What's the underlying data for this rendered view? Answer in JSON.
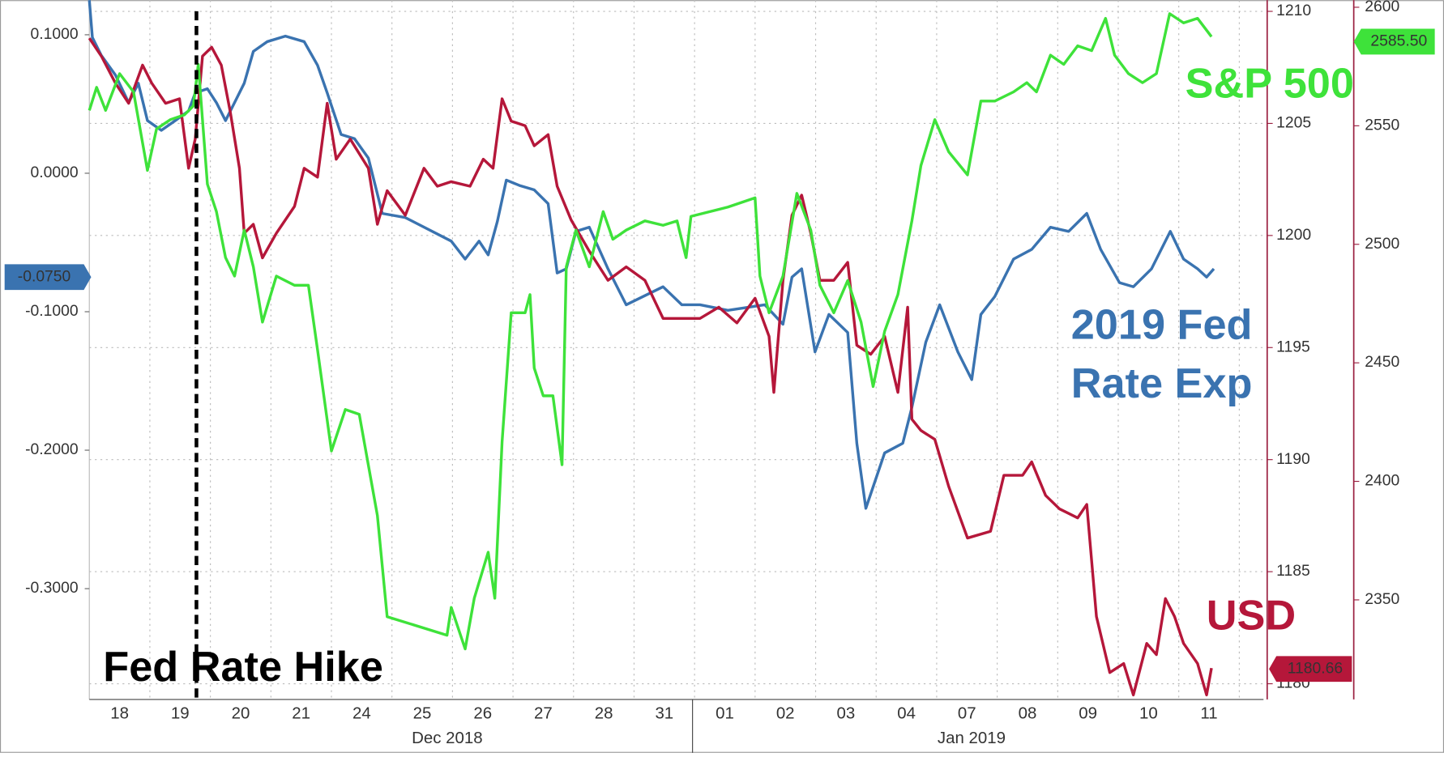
{
  "chart_data": {
    "type": "line",
    "categories": [
      "18",
      "19",
      "20",
      "21",
      "24",
      "25",
      "26",
      "27",
      "28",
      "31",
      "01",
      "02",
      "03",
      "04",
      "07",
      "08",
      "09",
      "10",
      "11"
    ],
    "month_labels": [
      "Dec 2018",
      "Jan 2019"
    ],
    "xlim": [
      0,
      19.4
    ],
    "ylim": [
      -0.38,
      0.125
    ],
    "yticks": [
      {
        "value": 0.1,
        "label": "0.1000"
      },
      {
        "value": 0,
        "label": "0.0000"
      },
      {
        "value": -0.1,
        "label": "-0.1000"
      },
      {
        "value": -0.2,
        "label": "-0.2000"
      },
      {
        "value": -0.3,
        "label": "-0.3000"
      }
    ],
    "y2lim": [
      1179.3,
      1210.5
    ],
    "y2ticks": [
      1180,
      1185,
      1190,
      1195,
      1200,
      1205,
      1210
    ],
    "y3lim": [
      2308,
      2603
    ],
    "y3ticks": [
      2350,
      2400,
      2450,
      2500,
      2550,
      2600
    ],
    "grid": true,
    "annotation": {
      "text": "Fed Rate Hike",
      "x": 1.77
    },
    "series": [
      {
        "name": "2019 Fed Rate Exp",
        "color": "#3a73b0",
        "axis": "y",
        "last_value": -0.075,
        "last_value_label": "-0.0750",
        "x": [
          0,
          0.05,
          0.2,
          0.43,
          0.65,
          0.81,
          0.96,
          1.19,
          1.42,
          1.64,
          1.75,
          1.95,
          2.1,
          2.25,
          2.4,
          2.56,
          2.71,
          2.94,
          3.24,
          3.55,
          3.77,
          3.93,
          4.16,
          4.38,
          4.61,
          4.84,
          5.22,
          5.98,
          6.21,
          6.44,
          6.59,
          6.74,
          6.89,
          7.12,
          7.35,
          7.58,
          7.73,
          7.88,
          8.04,
          8.26,
          8.57,
          8.87,
          9.48,
          9.79,
          10.09,
          10.55,
          11.16,
          11.46,
          11.61,
          11.77,
          11.99,
          12.22,
          12.53,
          12.68,
          12.83,
          13.14,
          13.44,
          13.59,
          13.82,
          14.05,
          14.35,
          14.58,
          14.73,
          14.96,
          15.27,
          15.57,
          15.88,
          16.18,
          16.48,
          16.71,
          17.02,
          17.25,
          17.55,
          17.86,
          18.08,
          18.31,
          18.46,
          18.58
        ],
        "values": [
          0.125,
          0.098,
          0.085,
          0.071,
          0.051,
          0.065,
          0.038,
          0.031,
          0.038,
          0.045,
          0.058,
          0.061,
          0.051,
          0.038,
          0.051,
          0.065,
          0.088,
          0.095,
          0.099,
          0.095,
          0.078,
          0.058,
          0.028,
          0.025,
          0.011,
          -0.029,
          -0.032,
          -0.049,
          -0.062,
          -0.049,
          -0.059,
          -0.035,
          -0.005,
          -0.009,
          -0.012,
          -0.022,
          -0.072,
          -0.069,
          -0.042,
          -0.039,
          -0.069,
          -0.095,
          -0.082,
          -0.095,
          -0.095,
          -0.099,
          -0.095,
          -0.109,
          -0.075,
          -0.069,
          -0.129,
          -0.102,
          -0.115,
          -0.195,
          -0.242,
          -0.202,
          -0.195,
          -0.169,
          -0.122,
          -0.095,
          -0.129,
          -0.149,
          -0.102,
          -0.089,
          -0.062,
          -0.055,
          -0.039,
          -0.042,
          -0.029,
          -0.055,
          -0.079,
          -0.082,
          -0.069,
          -0.042,
          -0.062,
          -0.069,
          -0.075,
          -0.069
        ]
      },
      {
        "name": "USD",
        "color": "#b5173a",
        "axis": "y2",
        "last_value": 1180.66,
        "last_value_label": "1180.66",
        "x": [
          0,
          0.2,
          0.43,
          0.65,
          0.88,
          1.03,
          1.26,
          1.49,
          1.64,
          1.75,
          1.87,
          2.02,
          2.18,
          2.33,
          2.48,
          2.56,
          2.71,
          2.86,
          3.09,
          3.39,
          3.55,
          3.77,
          3.93,
          4.08,
          4.31,
          4.61,
          4.76,
          4.92,
          5.22,
          5.53,
          5.75,
          5.98,
          6.29,
          6.51,
          6.67,
          6.82,
          6.97,
          7.2,
          7.35,
          7.58,
          7.73,
          7.96,
          8.26,
          8.57,
          8.87,
          9.18,
          9.48,
          9.79,
          10.09,
          10.4,
          10.7,
          11.0,
          11.23,
          11.31,
          11.46,
          11.61,
          11.77,
          11.92,
          12.07,
          12.3,
          12.53,
          12.68,
          12.91,
          13.14,
          13.36,
          13.52,
          13.59,
          13.74,
          13.97,
          14.2,
          14.51,
          14.89,
          15.11,
          15.42,
          15.57,
          15.8,
          16.03,
          16.33,
          16.48,
          16.64,
          16.86,
          17.09,
          17.25,
          17.47,
          17.63,
          17.78,
          17.93,
          18.08,
          18.31,
          18.46,
          18.54
        ],
        "values": [
          1208.8,
          1208.0,
          1206.8,
          1205.9,
          1207.6,
          1206.8,
          1205.9,
          1206.1,
          1203.0,
          1204.3,
          1208.0,
          1208.4,
          1207.6,
          1205.5,
          1203.0,
          1200.1,
          1200.5,
          1199.0,
          1200.1,
          1201.3,
          1203.0,
          1202.6,
          1205.9,
          1203.4,
          1204.3,
          1203.0,
          1200.5,
          1202.0,
          1200.9,
          1203.0,
          1202.2,
          1202.4,
          1202.2,
          1203.4,
          1203.0,
          1206.1,
          1205.1,
          1204.9,
          1204.0,
          1204.5,
          1202.2,
          1200.7,
          1199.3,
          1198.0,
          1198.6,
          1198.0,
          1196.3,
          1196.3,
          1196.3,
          1196.8,
          1196.1,
          1197.2,
          1195.5,
          1193.0,
          1198.0,
          1200.9,
          1201.8,
          1200.1,
          1198.0,
          1198.0,
          1198.8,
          1195.1,
          1194.7,
          1195.5,
          1193.0,
          1196.8,
          1191.8,
          1191.3,
          1190.9,
          1188.8,
          1186.5,
          1186.8,
          1189.3,
          1189.3,
          1189.9,
          1188.4,
          1187.8,
          1187.4,
          1188.0,
          1183.0,
          1180.5,
          1180.9,
          1179.5,
          1181.8,
          1181.3,
          1183.8,
          1183.0,
          1181.8,
          1180.9,
          1179.5,
          1180.7
        ]
      },
      {
        "name": "S&P 500",
        "color": "#3ee23a",
        "axis": "y3",
        "last_value": 2585.5,
        "last_value_label": "2585.50",
        "x": [
          0,
          0.12,
          0.27,
          0.5,
          0.73,
          0.96,
          1.11,
          1.34,
          1.57,
          1.72,
          1.8,
          1.95,
          2.1,
          2.25,
          2.4,
          2.56,
          2.71,
          2.86,
          3.09,
          3.39,
          3.62,
          3.77,
          4.0,
          4.23,
          4.46,
          4.76,
          4.92,
          5.91,
          5.98,
          6.21,
          6.36,
          6.59,
          6.7,
          6.82,
          6.97,
          7.2,
          7.28,
          7.35,
          7.5,
          7.66,
          7.81,
          7.88,
          8.04,
          8.26,
          8.49,
          8.65,
          8.87,
          9.18,
          9.48,
          9.71,
          9.86,
          9.94,
          10.55,
          11.0,
          11.08,
          11.23,
          11.46,
          11.69,
          11.92,
          12.07,
          12.3,
          12.53,
          12.75,
          12.95,
          13.14,
          13.36,
          13.59,
          13.74,
          13.97,
          14.2,
          14.51,
          14.73,
          14.96,
          15.27,
          15.49,
          15.65,
          15.88,
          16.1,
          16.33,
          16.56,
          16.79,
          16.94,
          17.17,
          17.4,
          17.63,
          17.85,
          18.08,
          18.31,
          18.54
        ],
        "values": [
          2556.5,
          2566.2,
          2556.5,
          2572.0,
          2564.3,
          2531.2,
          2548.7,
          2552.6,
          2554.6,
          2558.4,
          2575.9,
          2525.4,
          2513.8,
          2494.4,
          2486.6,
          2506.0,
          2490.5,
          2467.2,
          2486.6,
          2482.7,
          2482.7,
          2455.5,
          2412.8,
          2430.3,
          2428.3,
          2385.6,
          2342.9,
          2335.1,
          2346.8,
          2329.3,
          2350.7,
          2370.1,
          2350.7,
          2416.7,
          2471.1,
          2471.1,
          2478.8,
          2447.8,
          2436.1,
          2436.1,
          2407.0,
          2490.5,
          2506.0,
          2490.5,
          2513.8,
          2502.1,
          2506.0,
          2509.9,
          2508.0,
          2509.9,
          2494.4,
          2511.8,
          2515.7,
          2519.6,
          2486.6,
          2471.1,
          2486.6,
          2521.5,
          2506.0,
          2482.7,
          2471.1,
          2484.7,
          2467.2,
          2440.0,
          2463.3,
          2478.8,
          2509.9,
          2533.2,
          2552.6,
          2539.0,
          2529.3,
          2560.4,
          2560.4,
          2564.3,
          2568.2,
          2564.3,
          2579.8,
          2575.9,
          2583.7,
          2581.7,
          2595.3,
          2579.8,
          2572.0,
          2568.2,
          2572.0,
          2597.3,
          2593.4,
          2595.3,
          2587.6
        ]
      }
    ]
  }
}
